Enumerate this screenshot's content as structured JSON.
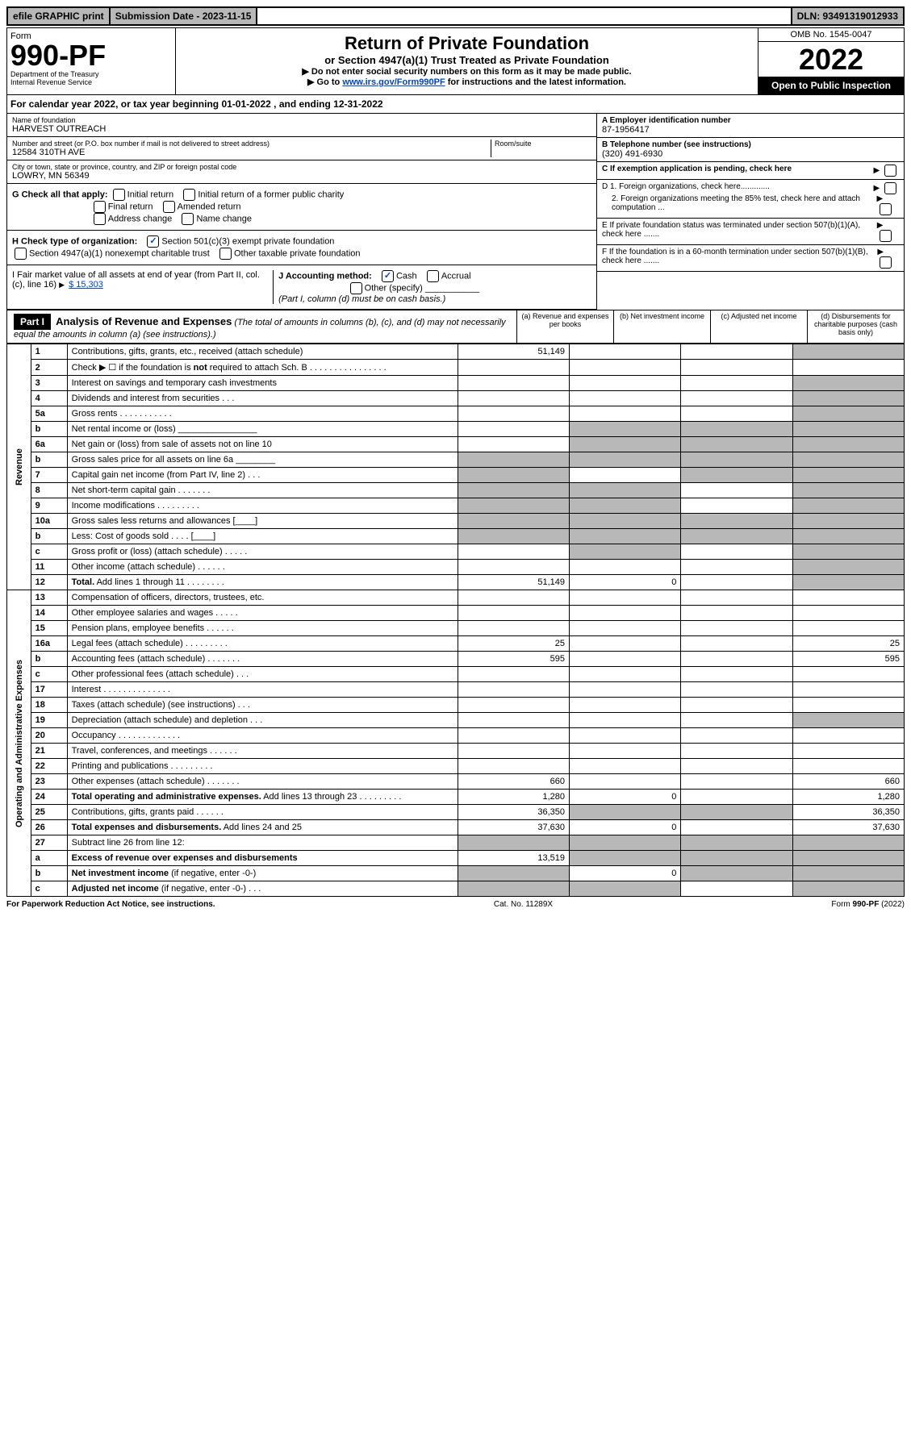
{
  "topbar": {
    "efile": "efile GRAPHIC print",
    "submission": "Submission Date - 2023-11-15",
    "dln": "DLN: 93491319012933"
  },
  "header": {
    "form_label": "Form",
    "form_number": "990-PF",
    "dept": "Department of the Treasury",
    "irs": "Internal Revenue Service",
    "title": "Return of Private Foundation",
    "subtitle": "or Section 4947(a)(1) Trust Treated as Private Foundation",
    "inst1": "▶ Do not enter social security numbers on this form as it may be made public.",
    "inst2_pre": "▶ Go to ",
    "inst2_link": "www.irs.gov/Form990PF",
    "inst2_post": " for instructions and the latest information.",
    "omb": "OMB No. 1545-0047",
    "year": "2022",
    "open": "Open to Public Inspection"
  },
  "calyear": "For calendar year 2022, or tax year beginning 01-01-2022                          , and ending 12-31-2022",
  "entity": {
    "name_label": "Name of foundation",
    "name": "HARVEST OUTREACH",
    "addr_label": "Number and street (or P.O. box number if mail is not delivered to street address)",
    "addr": "12584 310TH AVE",
    "room_label": "Room/suite",
    "city_label": "City or town, state or province, country, and ZIP or foreign postal code",
    "city": "LOWRY, MN  56349",
    "ein_label": "A Employer identification number",
    "ein": "87-1956417",
    "phone_label": "B Telephone number (see instructions)",
    "phone": "(320) 491-6930",
    "c_label": "C If exemption application is pending, check here",
    "d1": "D 1. Foreign organizations, check here.............",
    "d2": "2. Foreign organizations meeting the 85% test, check here and attach computation ...",
    "e_label": "E  If private foundation status was terminated under section 507(b)(1)(A), check here .......",
    "f_label": "F  If the foundation is in a 60-month termination under section 507(b)(1)(B), check here ......."
  },
  "g": {
    "label": "G Check all that apply:",
    "opts": [
      "Initial return",
      "Initial return of a former public charity",
      "Final return",
      "Amended return",
      "Address change",
      "Name change"
    ]
  },
  "h": {
    "label": "H Check type of organization:",
    "opt1": "Section 501(c)(3) exempt private foundation",
    "opt2": "Section 4947(a)(1) nonexempt charitable trust",
    "opt3": "Other taxable private foundation"
  },
  "i": {
    "label": "I Fair market value of all assets at end of year (from Part II, col. (c), line 16)",
    "value": "$  15,303"
  },
  "j": {
    "label": "J Accounting method:",
    "cash": "Cash",
    "accrual": "Accrual",
    "other": "Other (specify)",
    "note": "(Part I, column (d) must be on cash basis.)"
  },
  "part1": {
    "title": "Part I",
    "heading": "Analysis of Revenue and Expenses",
    "note": "(The total of amounts in columns (b), (c), and (d) may not necessarily equal the amounts in column (a) (see instructions).)",
    "cols": {
      "a": "(a)   Revenue and expenses per books",
      "b": "(b)   Net investment income",
      "c": "(c)   Adjusted net income",
      "d": "(d)   Disbursements for charitable purposes (cash basis only)"
    }
  },
  "section_labels": {
    "revenue": "Revenue",
    "expenses": "Operating and Administrative Expenses"
  },
  "rows": [
    {
      "n": "1",
      "desc": "Contributions, gifts, grants, etc., received (attach schedule)",
      "a": "51,149",
      "d_shade": true
    },
    {
      "n": "2",
      "desc": "Check ▶ ☐ if the foundation is <b>not</b> required to attach Sch. B     .  .  .  .  .  .  .  .  .  .  .  .  .  .  .  .",
      "merged": true
    },
    {
      "n": "3",
      "desc": "Interest on savings and temporary cash investments",
      "d_shade": true
    },
    {
      "n": "4",
      "desc": "Dividends and interest from securities    .   .   .",
      "d_shade": true
    },
    {
      "n": "5a",
      "desc": "Gross rents    .   .   .   .   .   .   .   .   .   .   .",
      "d_shade": true
    },
    {
      "n": "b",
      "desc": "Net rental income or (loss)  ________________",
      "shade_bcd": true
    },
    {
      "n": "6a",
      "desc": "Net gain or (loss) from sale of assets not on line 10",
      "shade_bcd": true,
      "d_shade": true
    },
    {
      "n": "b",
      "desc": "Gross sales price for all assets on line 6a ________",
      "shade_all": true
    },
    {
      "n": "7",
      "desc": "Capital gain net income (from Part IV, line 2)   .   .   .",
      "shade_a": true,
      "d_shade": true,
      "c_shade": true
    },
    {
      "n": "8",
      "desc": "Net short-term capital gain   .   .   .   .   .   .   .",
      "shade_ab": true,
      "d_shade": true
    },
    {
      "n": "9",
      "desc": "Income modifications  .   .   .   .   .   .   .   .   .",
      "shade_ab": true,
      "d_shade": true
    },
    {
      "n": "10a",
      "desc": "Gross sales less returns and allowances  [____]",
      "shade_all": true
    },
    {
      "n": "b",
      "desc": "Less: Cost of goods sold    .   .   .   .  [____]",
      "shade_all": true
    },
    {
      "n": "c",
      "desc": "Gross profit or (loss) (attach schedule)    .   .   .   .   .",
      "shade_b": true,
      "d_shade": true
    },
    {
      "n": "11",
      "desc": "Other income (attach schedule)    .   .   .   .   .   .",
      "d_shade": true
    },
    {
      "n": "12",
      "desc": "<b>Total.</b> Add lines 1 through 11   .   .   .   .   .   .   .   .",
      "a": "51,149",
      "b": "0",
      "d_shade": true
    }
  ],
  "exp_rows": [
    {
      "n": "13",
      "desc": "Compensation of officers, directors, trustees, etc."
    },
    {
      "n": "14",
      "desc": "Other employee salaries and wages   .   .   .   .   ."
    },
    {
      "n": "15",
      "desc": "Pension plans, employee benefits  .   .   .   .   .   ."
    },
    {
      "n": "16a",
      "desc": "Legal fees (attach schedule) .   .   .   .   .   .   .   .   .",
      "a": "25",
      "d": "25"
    },
    {
      "n": "b",
      "desc": "Accounting fees (attach schedule) .   .   .   .   .   .   .",
      "a": "595",
      "d": "595"
    },
    {
      "n": "c",
      "desc": "Other professional fees (attach schedule)    .   .   ."
    },
    {
      "n": "17",
      "desc": "Interest  .   .   .   .   .   .   .   .   .   .   .   .   .   ."
    },
    {
      "n": "18",
      "desc": "Taxes (attach schedule) (see instructions)    .   .   ."
    },
    {
      "n": "19",
      "desc": "Depreciation (attach schedule) and depletion    .   .   .",
      "d_shade": true
    },
    {
      "n": "20",
      "desc": "Occupancy .   .   .   .   .   .   .   .   .   .   .   .   ."
    },
    {
      "n": "21",
      "desc": "Travel, conferences, and meetings .   .   .   .   .   ."
    },
    {
      "n": "22",
      "desc": "Printing and publications  .   .   .   .   .   .   .   .   ."
    },
    {
      "n": "23",
      "desc": "Other expenses (attach schedule) .   .   .   .   .   .   .",
      "a": "660",
      "d": "660"
    },
    {
      "n": "24",
      "desc": "<b>Total operating and administrative expenses.</b> Add lines 13 through 23   .   .   .   .   .   .   .   .   .",
      "a": "1,280",
      "b": "0",
      "d": "1,280"
    },
    {
      "n": "25",
      "desc": "Contributions, gifts, grants paid     .   .   .   .   .   .",
      "a": "36,350",
      "b_shade": true,
      "c_shade": true,
      "d": "36,350"
    },
    {
      "n": "26",
      "desc": "<b>Total expenses and disbursements.</b> Add lines 24 and 25",
      "a": "37,630",
      "b": "0",
      "d": "37,630"
    },
    {
      "n": "27",
      "desc": "Subtract line 26 from line 12:",
      "shade_all": true
    },
    {
      "n": "a",
      "desc": "<b>Excess of revenue over expenses and disbursements</b>",
      "a": "13,519",
      "shade_bcd": true
    },
    {
      "n": "b",
      "desc": "<b>Net investment income</b> (if negative, enter -0-)",
      "a_shade": true,
      "b": "0",
      "shade_cd": true
    },
    {
      "n": "c",
      "desc": "<b>Adjusted net income</b> (if negative, enter -0-)   .   .   .",
      "shade_ab": true,
      "d_shade": true
    }
  ],
  "footer": {
    "left": "For Paperwork Reduction Act Notice, see instructions.",
    "mid": "Cat. No. 11289X",
    "right": "Form 990-PF (2022)"
  }
}
